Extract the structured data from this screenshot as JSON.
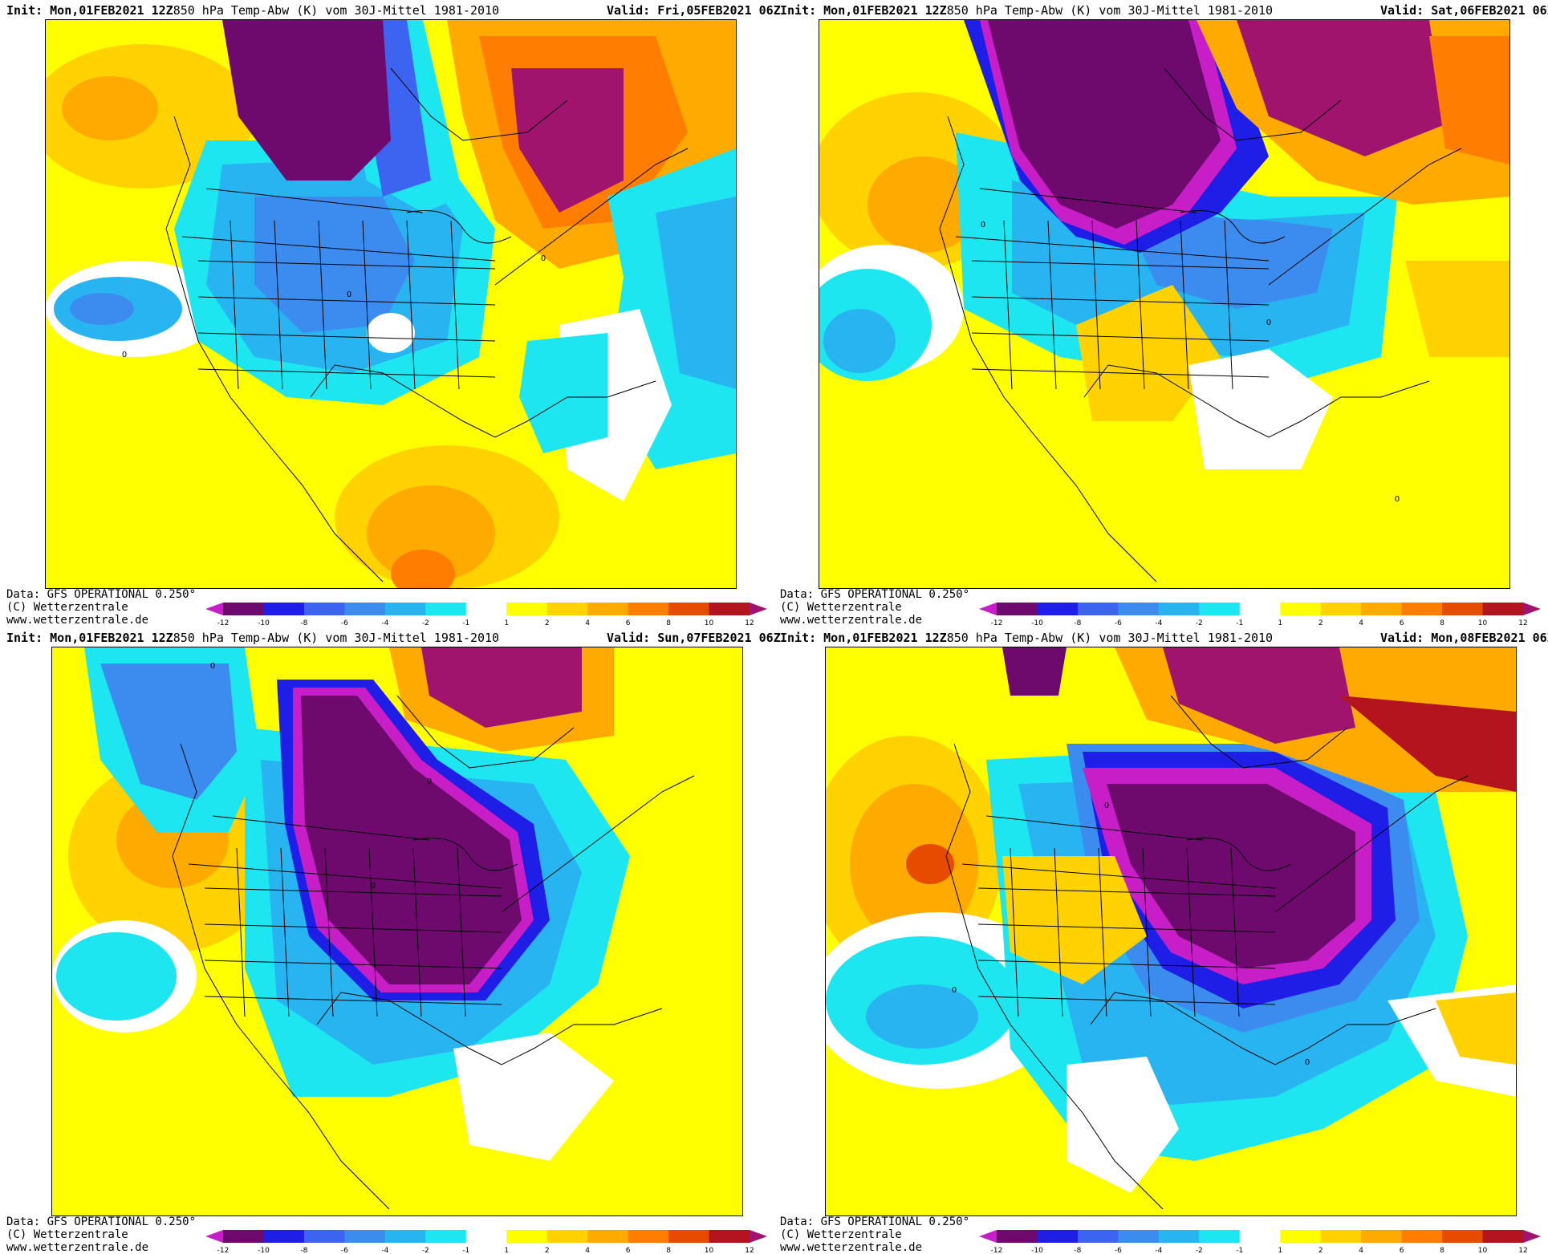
{
  "panels": [
    {
      "init_label": "Init:",
      "init_value": "Mon,01FEB2021 12Z",
      "title": "850 hPa Temp-Abw (K) vom 30J-Mittel 1981-2010",
      "valid_label": "Valid:",
      "valid_value": "Fri,05FEB2021 06Z"
    },
    {
      "init_label": "Init:",
      "init_value": "Mon,01FEB2021 12Z",
      "title": "850 hPa Temp-Abw (K) vom 30J-Mittel 1981-2010",
      "valid_label": "Valid:",
      "valid_value": "Sat,06FEB2021 06Z"
    },
    {
      "init_label": "Init:",
      "init_value": "Mon,01FEB2021 12Z",
      "title": "850 hPa Temp-Abw (K) vom 30J-Mittel 1981-2010",
      "valid_label": "Valid:",
      "valid_value": "Sun,07FEB2021 06Z"
    },
    {
      "init_label": "Init:",
      "init_value": "Mon,01FEB2021 12Z",
      "title": "850 hPa Temp-Abw (K) vom 30J-Mittel 1981-2010",
      "valid_label": "Valid:",
      "valid_value": "Mon,08FEB2021 06Z"
    }
  ],
  "footer": {
    "data_line": "Data: GFS OPERATIONAL 0.250°",
    "copyright": "(C) Wetterzentrale",
    "url": "www.wetterzentrale.de"
  },
  "contour_label": "0",
  "legend": {
    "ticks": [
      "-12",
      "-10",
      "-8",
      "-6",
      "-4",
      "-2",
      "-1",
      "1",
      "2",
      "4",
      "6",
      "8",
      "10",
      "12"
    ],
    "colors": [
      "#c81ec8",
      "#6e0a6e",
      "#1e1ee6",
      "#3c64f0",
      "#3c8cf0",
      "#28b4f0",
      "#1ee6f0",
      "#ffffff",
      "#ffff00",
      "#ffd200",
      "#ffaa00",
      "#ff7d00",
      "#e64b00",
      "#b4141e",
      "#a0146e"
    ]
  }
}
